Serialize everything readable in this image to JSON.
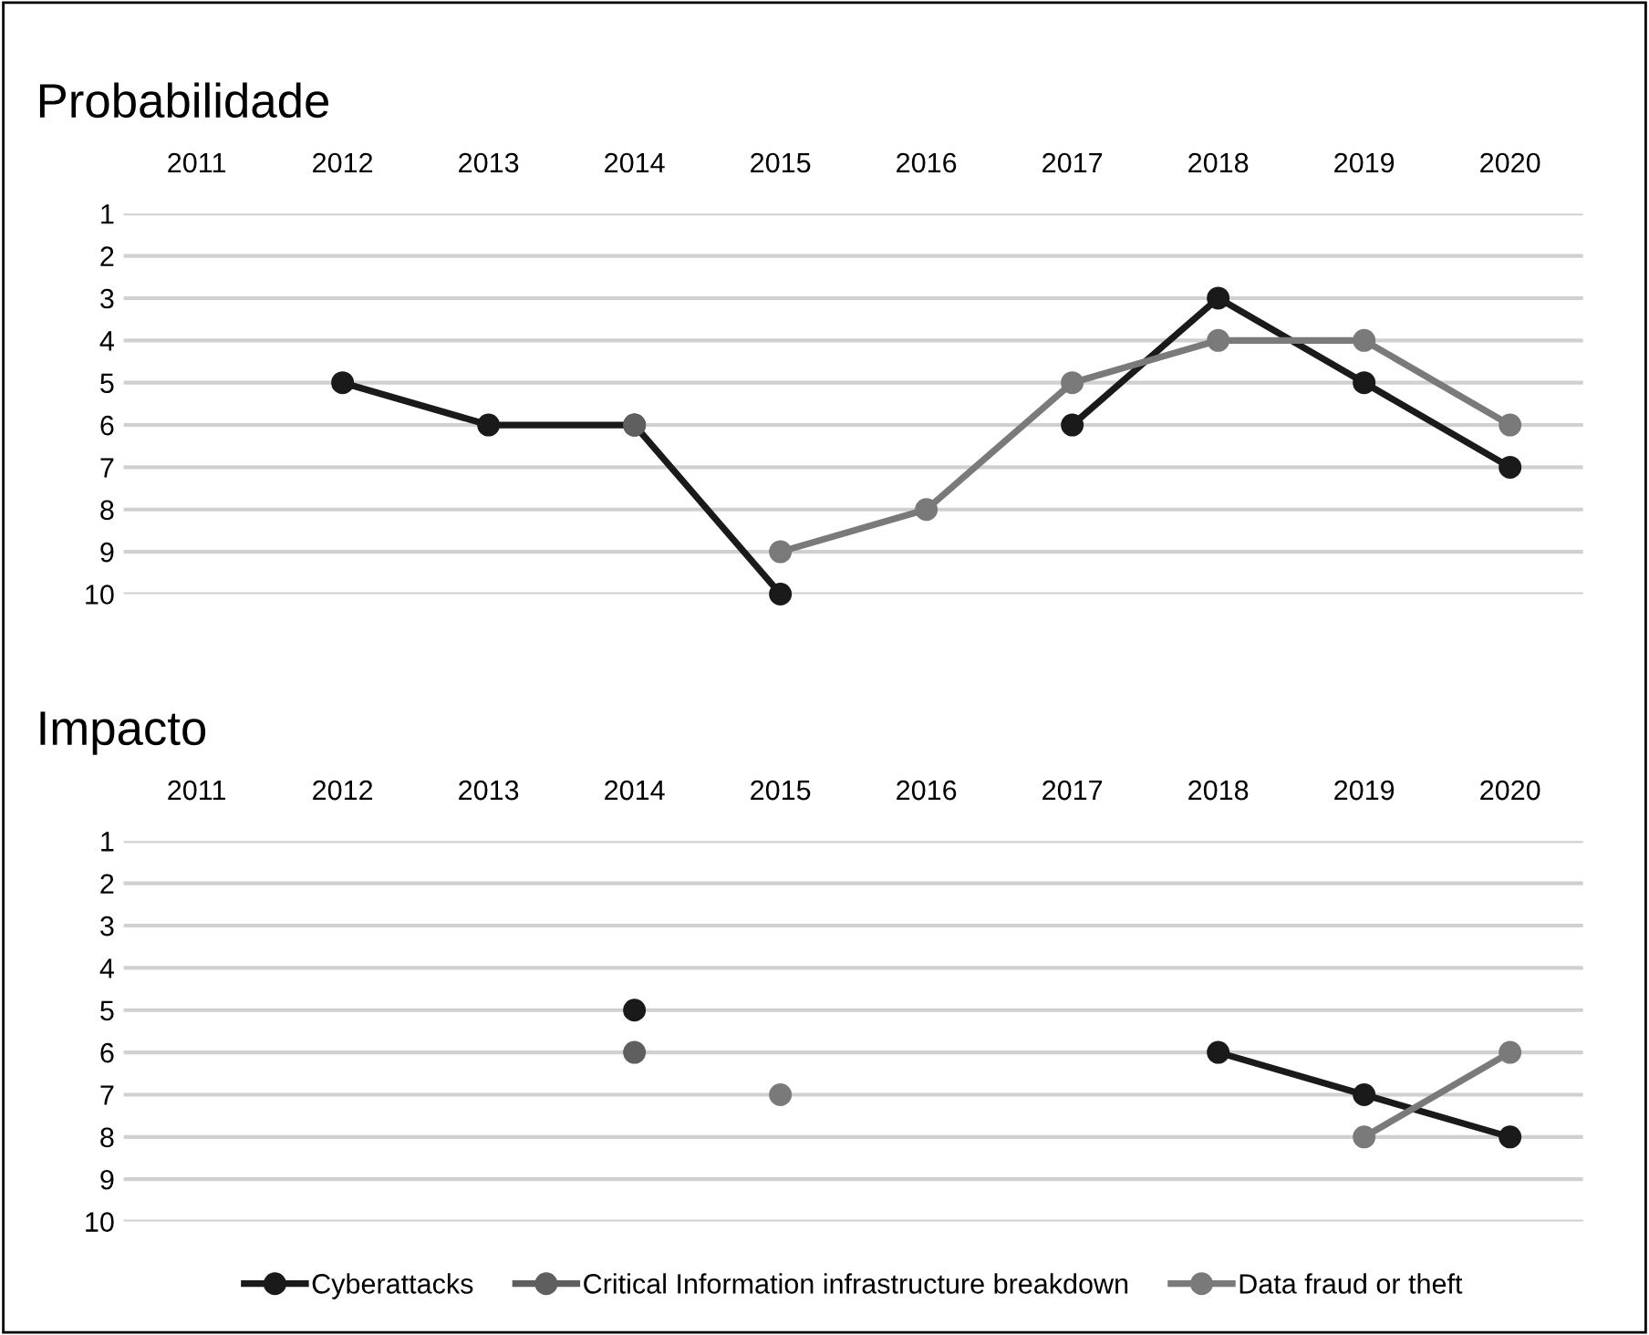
{
  "chart_data": [
    {
      "type": "line",
      "title": "Probabilidade",
      "categories": [
        "2011",
        "2012",
        "2013",
        "2014",
        "2015",
        "2016",
        "2017",
        "2018",
        "2019",
        "2020"
      ],
      "ylim": [
        10,
        1
      ],
      "yticks": [
        1,
        2,
        3,
        4,
        5,
        6,
        7,
        8,
        9,
        10
      ],
      "grid": "y",
      "marker": "circle",
      "series": [
        {
          "color": "#1a1a1a",
          "values": [
            null,
            5,
            6,
            6,
            10,
            null,
            6,
            3,
            5,
            7
          ]
        },
        {
          "color": "#5f5f5f",
          "values": [
            null,
            null,
            null,
            6,
            null,
            null,
            null,
            null,
            null,
            null
          ]
        },
        {
          "color": "#7a7a7a",
          "values": [
            null,
            null,
            null,
            null,
            9,
            8,
            5,
            4,
            4,
            6
          ]
        }
      ]
    },
    {
      "type": "line",
      "title": "Impacto",
      "categories": [
        "2011",
        "2012",
        "2013",
        "2014",
        "2015",
        "2016",
        "2017",
        "2018",
        "2019",
        "2020"
      ],
      "ylim": [
        10,
        1
      ],
      "yticks": [
        1,
        2,
        3,
        4,
        5,
        6,
        7,
        8,
        9,
        10
      ],
      "grid": "y",
      "marker": "circle",
      "legend": "bottom",
      "series": [
        {
          "name": "Cyberattacks",
          "color": "#1a1a1a",
          "values": [
            null,
            null,
            null,
            5,
            null,
            null,
            null,
            6,
            7,
            8
          ]
        },
        {
          "name": "Critical Information infrastructure breakdown",
          "color": "#5f5f5f",
          "values": [
            null,
            null,
            null,
            6,
            null,
            null,
            null,
            null,
            null,
            null
          ]
        },
        {
          "name": "Data fraud or theft",
          "color": "#7a7a7a",
          "values": [
            null,
            null,
            null,
            null,
            7,
            null,
            null,
            null,
            8,
            6
          ]
        }
      ]
    }
  ]
}
